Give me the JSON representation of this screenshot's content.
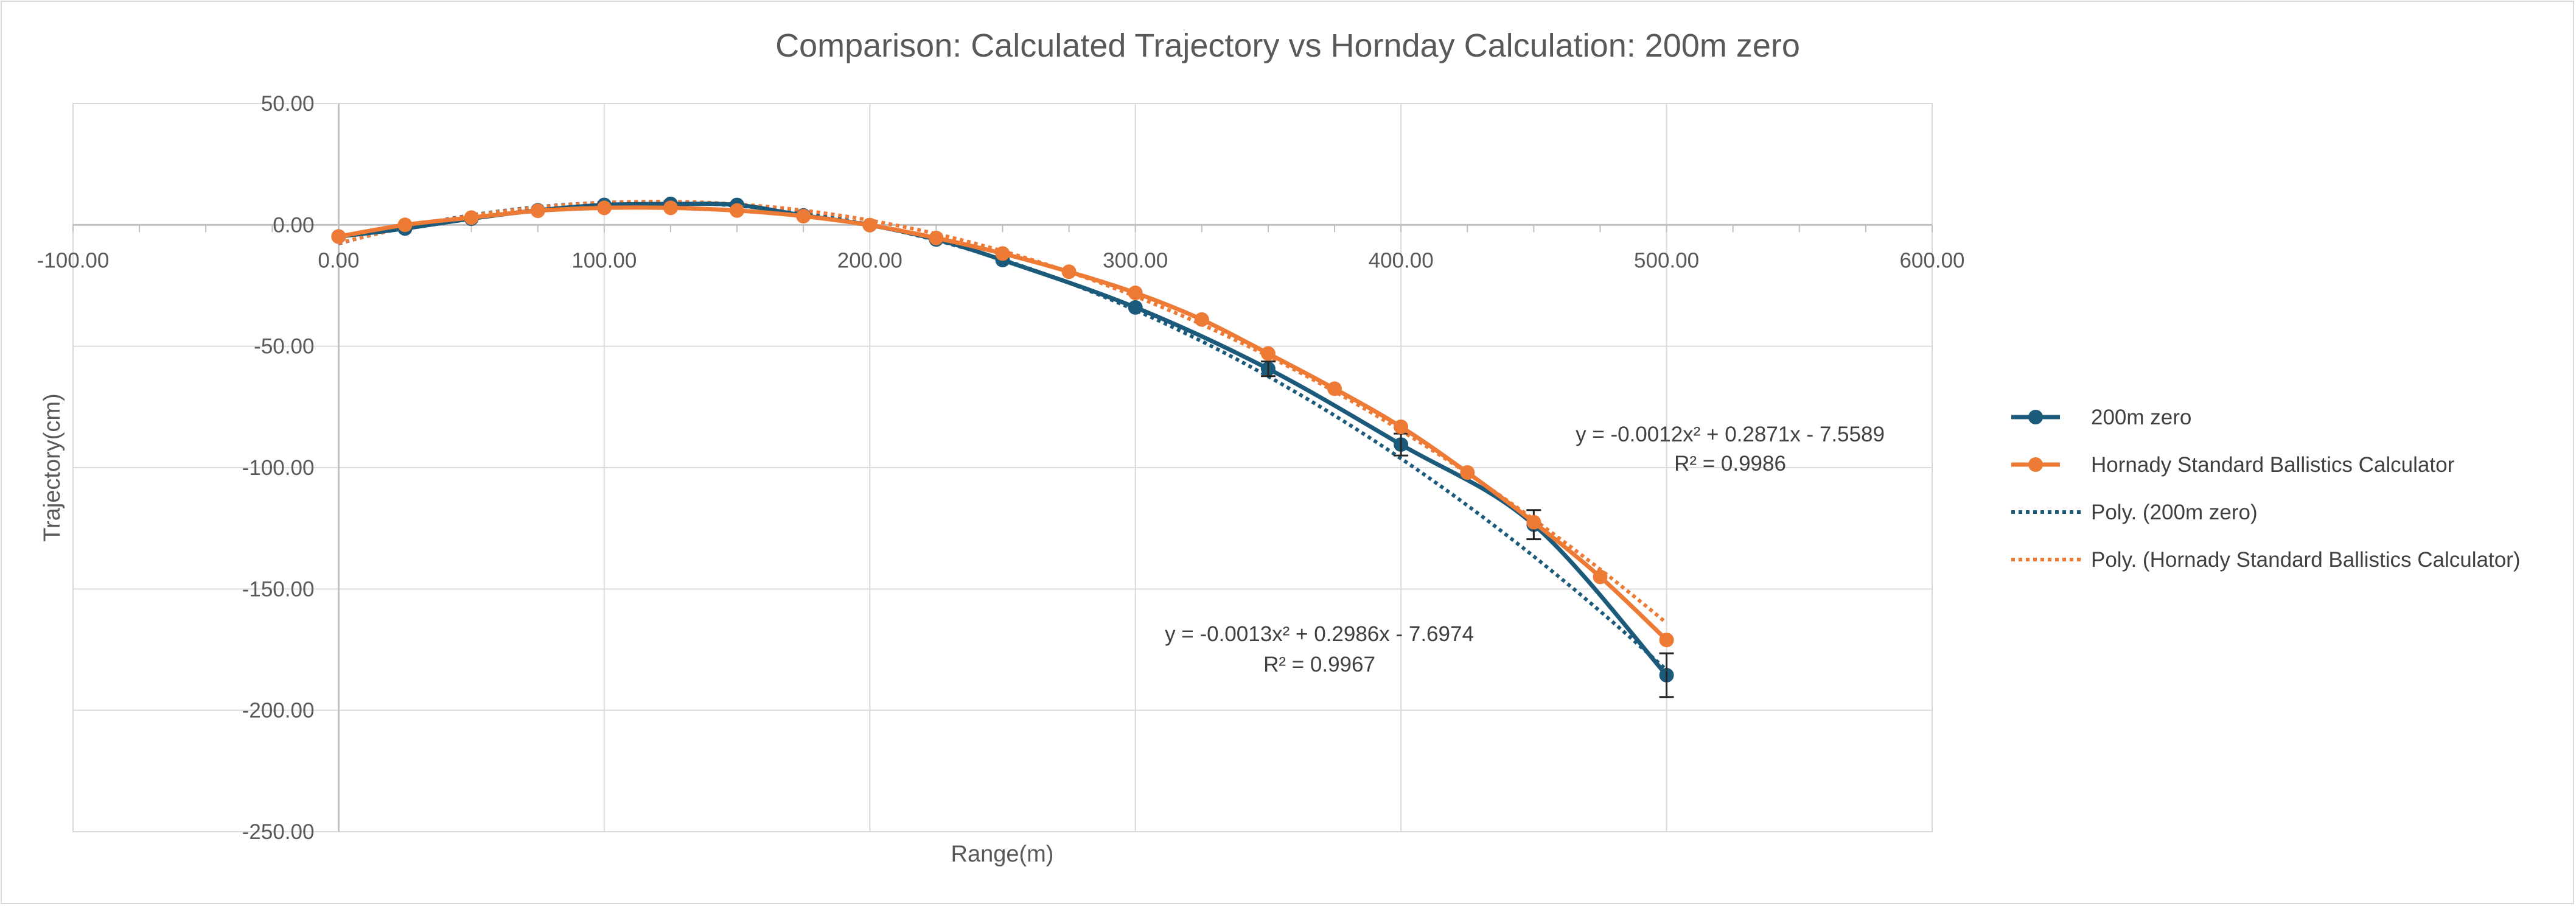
{
  "chart_data": {
    "type": "scatter",
    "title": "Comparison: Calculated Trajectory vs Hornday Calculation: 200m zero",
    "xlabel": "Range(m)",
    "ylabel": "Trajectory(cm)",
    "xlim": [
      -100,
      600
    ],
    "ylim": [
      -250,
      50
    ],
    "x_ticks": [
      "-100.00",
      "0.00",
      "100.00",
      "200.00",
      "300.00",
      "400.00",
      "500.00",
      "600.00"
    ],
    "y_ticks": [
      "50.00",
      "0.00",
      "-50.00",
      "-100.00",
      "-150.00",
      "-200.00",
      "-250.00"
    ],
    "grid": true,
    "legend_position": "right",
    "series": [
      {
        "name": "200m zero",
        "color": "#1b5a7a",
        "marker": "circle",
        "x": [
          0,
          25,
          50,
          75,
          100,
          125,
          150,
          175,
          200,
          225,
          250,
          300,
          350,
          400,
          450,
          500
        ],
        "y": [
          -4.8,
          -1.5,
          2.6,
          6.0,
          8.2,
          8.6,
          8.2,
          3.9,
          -0.1,
          -6.0,
          -14.5,
          -34.0,
          -59.3,
          -90.5,
          -123.5,
          -185.5
        ],
        "error_bars": [
          {
            "x": 350,
            "y": -59.3,
            "err": 3
          },
          {
            "x": 400,
            "y": -90.5,
            "err": 4.5
          },
          {
            "x": 450,
            "y": -123.5,
            "err": 6
          },
          {
            "x": 500,
            "y": -185.5,
            "err": 9
          }
        ]
      },
      {
        "name": "Hornady Standard Ballistics Calculator",
        "color": "#ee7b35",
        "marker": "circle",
        "x": [
          0,
          25,
          50,
          75,
          100,
          125,
          150,
          175,
          200,
          225,
          250,
          275,
          300,
          325,
          350,
          375,
          400,
          425,
          450,
          475,
          500
        ],
        "y": [
          -4.8,
          0.0,
          3.0,
          5.8,
          7.0,
          7.0,
          5.9,
          3.6,
          -0.1,
          -5.4,
          -11.8,
          -19.3,
          -28.0,
          -39.0,
          -53.0,
          -67.5,
          -83.2,
          -102.0,
          -122.5,
          -145.0,
          -171.0
        ]
      },
      {
        "name": "Poly. (200m zero)",
        "color": "#1b5a7a",
        "style": "dotted",
        "equation": "y = -0.0013x² + 0.2986x - 7.6974",
        "r2": "R² = 0.9967",
        "coefficients": [
          -0.0013,
          0.2986,
          -7.6974
        ],
        "x_range": [
          0,
          500
        ]
      },
      {
        "name": "Poly. (Hornady Standard Ballistics Calculator)",
        "color": "#ee7b35",
        "style": "dotted",
        "equation": "y = -0.0012x² + 0.2871x - 7.5589",
        "r2": "R² = 0.9986",
        "coefficients": [
          -0.0012,
          0.2871,
          -7.5589
        ],
        "x_range": [
          0,
          500
        ]
      }
    ]
  }
}
